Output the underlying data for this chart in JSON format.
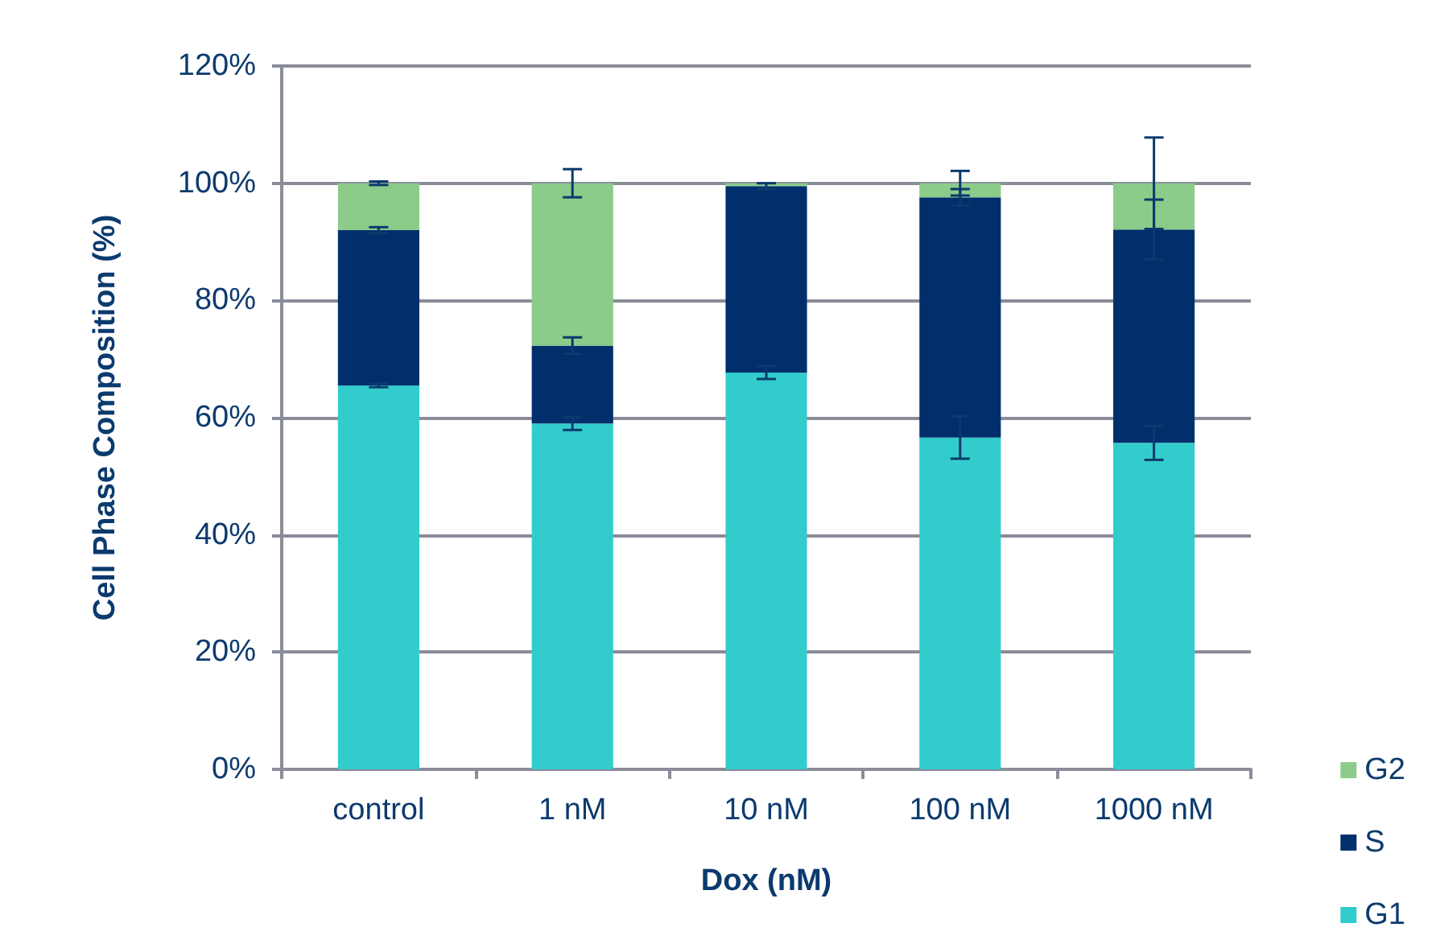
{
  "chart_data": {
    "type": "bar",
    "stacked": true,
    "xlabel": "Dox (nM)",
    "ylabel": "Cell Phase Composition (%)",
    "categories": [
      "control",
      "1 nM",
      "10 nM",
      "100 nM",
      "1000 nM"
    ],
    "series": [
      {
        "name": "G1",
        "color": "#33cccc",
        "values": [
          65.5,
          59,
          67.7,
          56.6,
          55.7
        ],
        "errors": [
          0.3,
          1.1,
          1.1,
          3.6,
          2.9
        ]
      },
      {
        "name": "S",
        "color": "#002f6c",
        "values": [
          26.5,
          13.3,
          31.8,
          41,
          36.4
        ],
        "errors": [
          0.5,
          1.4,
          0.5,
          1.4,
          5.1
        ]
      },
      {
        "name": "G2",
        "color": "#8ccb8a",
        "values": [
          8,
          27.7,
          0.5,
          2.4,
          7.9
        ],
        "errors": [
          0.3,
          2.4,
          null,
          2.1,
          7.8
        ]
      }
    ],
    "ylim": [
      0,
      120
    ],
    "yticks": [
      {
        "value": 0,
        "label": "0%"
      },
      {
        "value": 20,
        "label": "20%"
      },
      {
        "value": 40,
        "label": "40%"
      },
      {
        "value": 60,
        "label": "60%"
      },
      {
        "value": 80,
        "label": "80%"
      },
      {
        "value": 100,
        "label": "100%"
      },
      {
        "value": 120,
        "label": "120%"
      }
    ],
    "grid": "y",
    "legend": "bottom right"
  }
}
